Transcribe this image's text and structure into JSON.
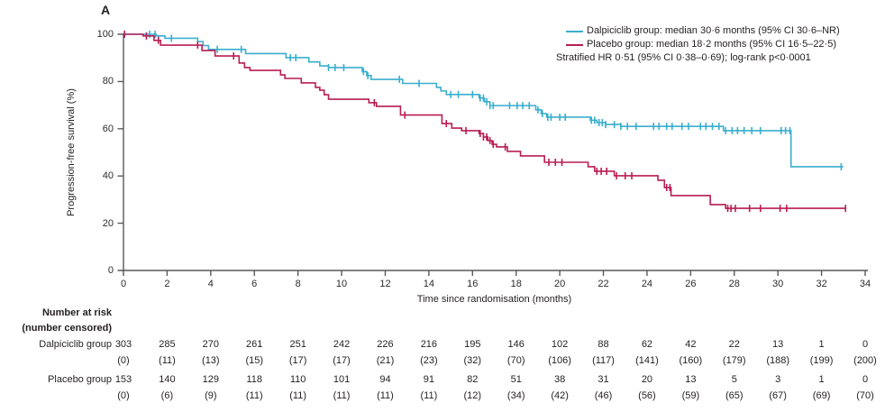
{
  "panel_label": "A",
  "legend": {
    "items": [
      {
        "label": "Dalpiciclib group: median 30·6 months (95% CI 30·6–NR)",
        "color": "#3aaecd"
      },
      {
        "label": "Placebo group: median 18·2 months (95% CI 16·5–22·5)",
        "color": "#b81d54"
      }
    ],
    "note": "Stratified HR 0·51 (95% CI 0·38–0·69); log-rank p<0·0001"
  },
  "chart_data": {
    "type": "line",
    "subtype": "kaplan-meier-step",
    "title": "",
    "xlabel": "Time since randomisation (months)",
    "ylabel": "Progression-free survival (%)",
    "xlim": [
      0,
      34
    ],
    "ylim": [
      0,
      100
    ],
    "x_ticks": [
      0,
      2,
      4,
      6,
      8,
      10,
      12,
      14,
      16,
      18,
      20,
      22,
      24,
      26,
      28,
      30,
      32,
      34
    ],
    "y_ticks": [
      0,
      20,
      40,
      60,
      80,
      100
    ],
    "grid": false,
    "legend_position": "top-right",
    "axis_color": "#58595b",
    "series": [
      {
        "name": "Dalpiciclib group",
        "color": "#3aaecd",
        "median_months": "30·6",
        "median_ci": "30·6–NR",
        "end_month": 33.0,
        "steps": [
          [
            0,
            100
          ],
          [
            1.5,
            99.3
          ],
          [
            1.9,
            98.3
          ],
          [
            3.4,
            96.9
          ],
          [
            3.65,
            95.2
          ],
          [
            3.9,
            93.6
          ],
          [
            5.6,
            91.8
          ],
          [
            7.45,
            90.1
          ],
          [
            8.5,
            88.3
          ],
          [
            9.0,
            86.6
          ],
          [
            9.4,
            85.9
          ],
          [
            10.95,
            84.2
          ],
          [
            11.15,
            82.5
          ],
          [
            11.35,
            80.9
          ],
          [
            12.8,
            79.2
          ],
          [
            14.35,
            77.5
          ],
          [
            14.55,
            76.0
          ],
          [
            14.8,
            74.5
          ],
          [
            16.3,
            73.0
          ],
          [
            16.55,
            71.4
          ],
          [
            16.8,
            69.8
          ],
          [
            18.9,
            68.0
          ],
          [
            19.15,
            66.4
          ],
          [
            19.4,
            64.9
          ],
          [
            21.4,
            63.6
          ],
          [
            21.7,
            62.6
          ],
          [
            22.1,
            61.8
          ],
          [
            22.8,
            61.0
          ],
          [
            27.5,
            59.2
          ],
          [
            30.6,
            43.9
          ]
        ],
        "censor_months": [
          1.2,
          1.45,
          2.2,
          4.3,
          5.4,
          7.65,
          7.9,
          9.4,
          9.7,
          10.1,
          11.0,
          11.2,
          12.65,
          13.55,
          15.0,
          15.35,
          16.0,
          16.35,
          16.5,
          16.65,
          16.8,
          16.95,
          17.7,
          18.05,
          18.3,
          18.6,
          19.0,
          19.2,
          19.45,
          19.6,
          20.0,
          20.25,
          21.45,
          21.6,
          21.8,
          21.95,
          22.1,
          22.5,
          22.8,
          23.1,
          23.5,
          24.3,
          24.55,
          24.9,
          25.15,
          25.6,
          25.9,
          26.45,
          26.7,
          27.0,
          27.3,
          27.6,
          27.9,
          28.15,
          28.45,
          28.8,
          29.2,
          30.15,
          30.35,
          30.55,
          32.9
        ]
      },
      {
        "name": "Placebo group",
        "color": "#b81d54",
        "median_months": "18·2",
        "median_ci": "16·5–22·5",
        "end_month": 33.1,
        "steps": [
          [
            0,
            100
          ],
          [
            0.9,
            99.3
          ],
          [
            1.4,
            97.4
          ],
          [
            1.7,
            95.4
          ],
          [
            3.6,
            93.1
          ],
          [
            4.2,
            90.8
          ],
          [
            5.3,
            87.8
          ],
          [
            5.55,
            85.9
          ],
          [
            5.8,
            84.7
          ],
          [
            7.2,
            82.8
          ],
          [
            7.4,
            81.3
          ],
          [
            8.15,
            79.4
          ],
          [
            8.8,
            77.5
          ],
          [
            9.0,
            76.3
          ],
          [
            9.2,
            74.4
          ],
          [
            9.4,
            72.5
          ],
          [
            11.25,
            71.0
          ],
          [
            11.6,
            69.5
          ],
          [
            12.7,
            65.8
          ],
          [
            14.6,
            62.2
          ],
          [
            15.05,
            60.3
          ],
          [
            15.5,
            59.2
          ],
          [
            16.3,
            58.0
          ],
          [
            16.5,
            56.5
          ],
          [
            16.7,
            55.0
          ],
          [
            16.9,
            53.4
          ],
          [
            17.1,
            52.3
          ],
          [
            17.6,
            50.4
          ],
          [
            18.2,
            48.5
          ],
          [
            19.3,
            45.8
          ],
          [
            21.3,
            43.9
          ],
          [
            21.6,
            42.0
          ],
          [
            22.5,
            40.1
          ],
          [
            24.5,
            38.2
          ],
          [
            24.8,
            35.1
          ],
          [
            25.1,
            31.7
          ],
          [
            26.9,
            27.9
          ],
          [
            27.6,
            26.3
          ]
        ],
        "censor_months": [
          0.05,
          1.05,
          1.6,
          3.4,
          5.05,
          11.5,
          12.9,
          14.8,
          15.7,
          16.35,
          16.5,
          16.65,
          16.8,
          16.95,
          17.5,
          19.5,
          19.8,
          20.1,
          21.7,
          21.9,
          22.15,
          22.6,
          23.0,
          23.3,
          24.9,
          25.05,
          27.7,
          27.85,
          28.05,
          28.7,
          29.2,
          30.1,
          30.4,
          33.1
        ]
      }
    ]
  },
  "risk_table": {
    "header_line1": "Number at risk",
    "header_line2": "(number censored)",
    "time_points": [
      0,
      2,
      4,
      6,
      8,
      10,
      12,
      14,
      16,
      18,
      20,
      22,
      24,
      26,
      28,
      30,
      32,
      34
    ],
    "rows": [
      {
        "label": "Dalpiciclib group",
        "at_risk": [
          "303",
          "285",
          "270",
          "261",
          "251",
          "242",
          "226",
          "216",
          "195",
          "146",
          "102",
          "88",
          "62",
          "42",
          "22",
          "13",
          "1",
          "0"
        ],
        "censored": [
          "(0)",
          "(11)",
          "(13)",
          "(15)",
          "(17)",
          "(17)",
          "(21)",
          "(23)",
          "(32)",
          "(70)",
          "(106)",
          "(117)",
          "(141)",
          "(160)",
          "(179)",
          "(188)",
          "(199)",
          "(200)"
        ]
      },
      {
        "label": "Placebo group",
        "at_risk": [
          "153",
          "140",
          "129",
          "118",
          "110",
          "101",
          "94",
          "91",
          "82",
          "51",
          "38",
          "31",
          "20",
          "13",
          "5",
          "3",
          "1",
          "0"
        ],
        "censored": [
          "(0)",
          "(6)",
          "(9)",
          "(11)",
          "(11)",
          "(11)",
          "(11)",
          "(11)",
          "(12)",
          "(34)",
          "(42)",
          "(46)",
          "(56)",
          "(59)",
          "(65)",
          "(67)",
          "(69)",
          "(70)"
        ]
      }
    ]
  }
}
